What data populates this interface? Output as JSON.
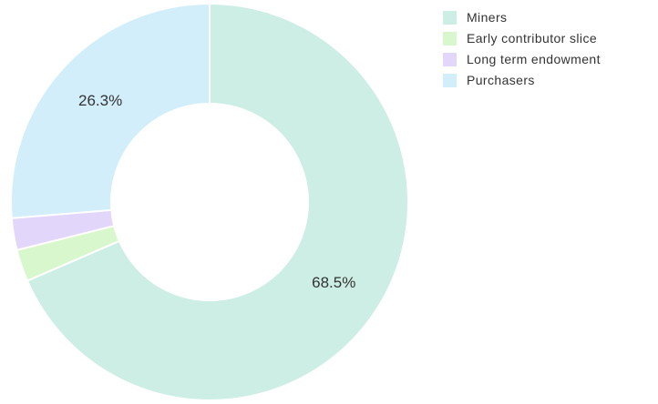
{
  "chart_data": {
    "type": "pie",
    "donut": true,
    "title": "",
    "categories": [
      "Miners",
      "Early contributor slice",
      "Long term endowment",
      "Purchasers"
    ],
    "values": [
      68.5,
      2.6,
      2.6,
      26.3
    ],
    "colors": [
      "#cdeee4",
      "#d9f7cc",
      "#e3d6fb",
      "#d2eefb"
    ],
    "data_labels": [
      "68.5%",
      "",
      "",
      "26.3%"
    ],
    "legend_position": "top-right",
    "start_angle_degrees": 0,
    "direction": "clockwise"
  }
}
